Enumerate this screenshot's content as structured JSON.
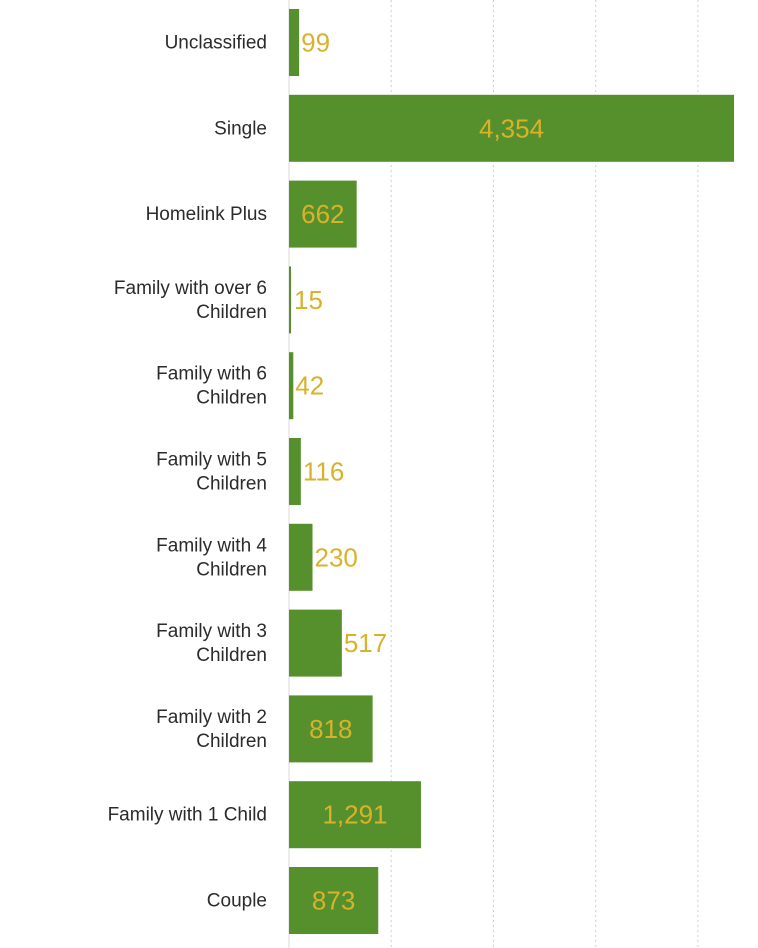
{
  "chart_data": {
    "type": "bar",
    "orientation": "horizontal",
    "categories": [
      "Unclassified",
      "Single",
      "Homelink Plus",
      "Family with over 6\nChildren",
      "Family with 6\nChildren",
      "Family with 5\nChildren",
      "Family with 4\nChildren",
      "Family with 3\nChildren",
      "Family with 2\nChildren",
      "Family with 1 Child",
      "Couple"
    ],
    "values": [
      99,
      4354,
      662,
      15,
      42,
      116,
      230,
      517,
      818,
      1291,
      873
    ],
    "data_labels": [
      "99",
      "4,354",
      "662",
      "15",
      "42",
      "116",
      "230",
      "517",
      "818",
      "1,291",
      "873"
    ],
    "title": "",
    "xlabel": "",
    "ylabel": "",
    "xlim": [
      0,
      4500
    ],
    "grid": true,
    "legend": "none",
    "colors": {
      "bar": "#56902c",
      "data_label": "#d9b22c",
      "category_text": "#2b2b2b",
      "grid": "#cfcfcf"
    }
  }
}
